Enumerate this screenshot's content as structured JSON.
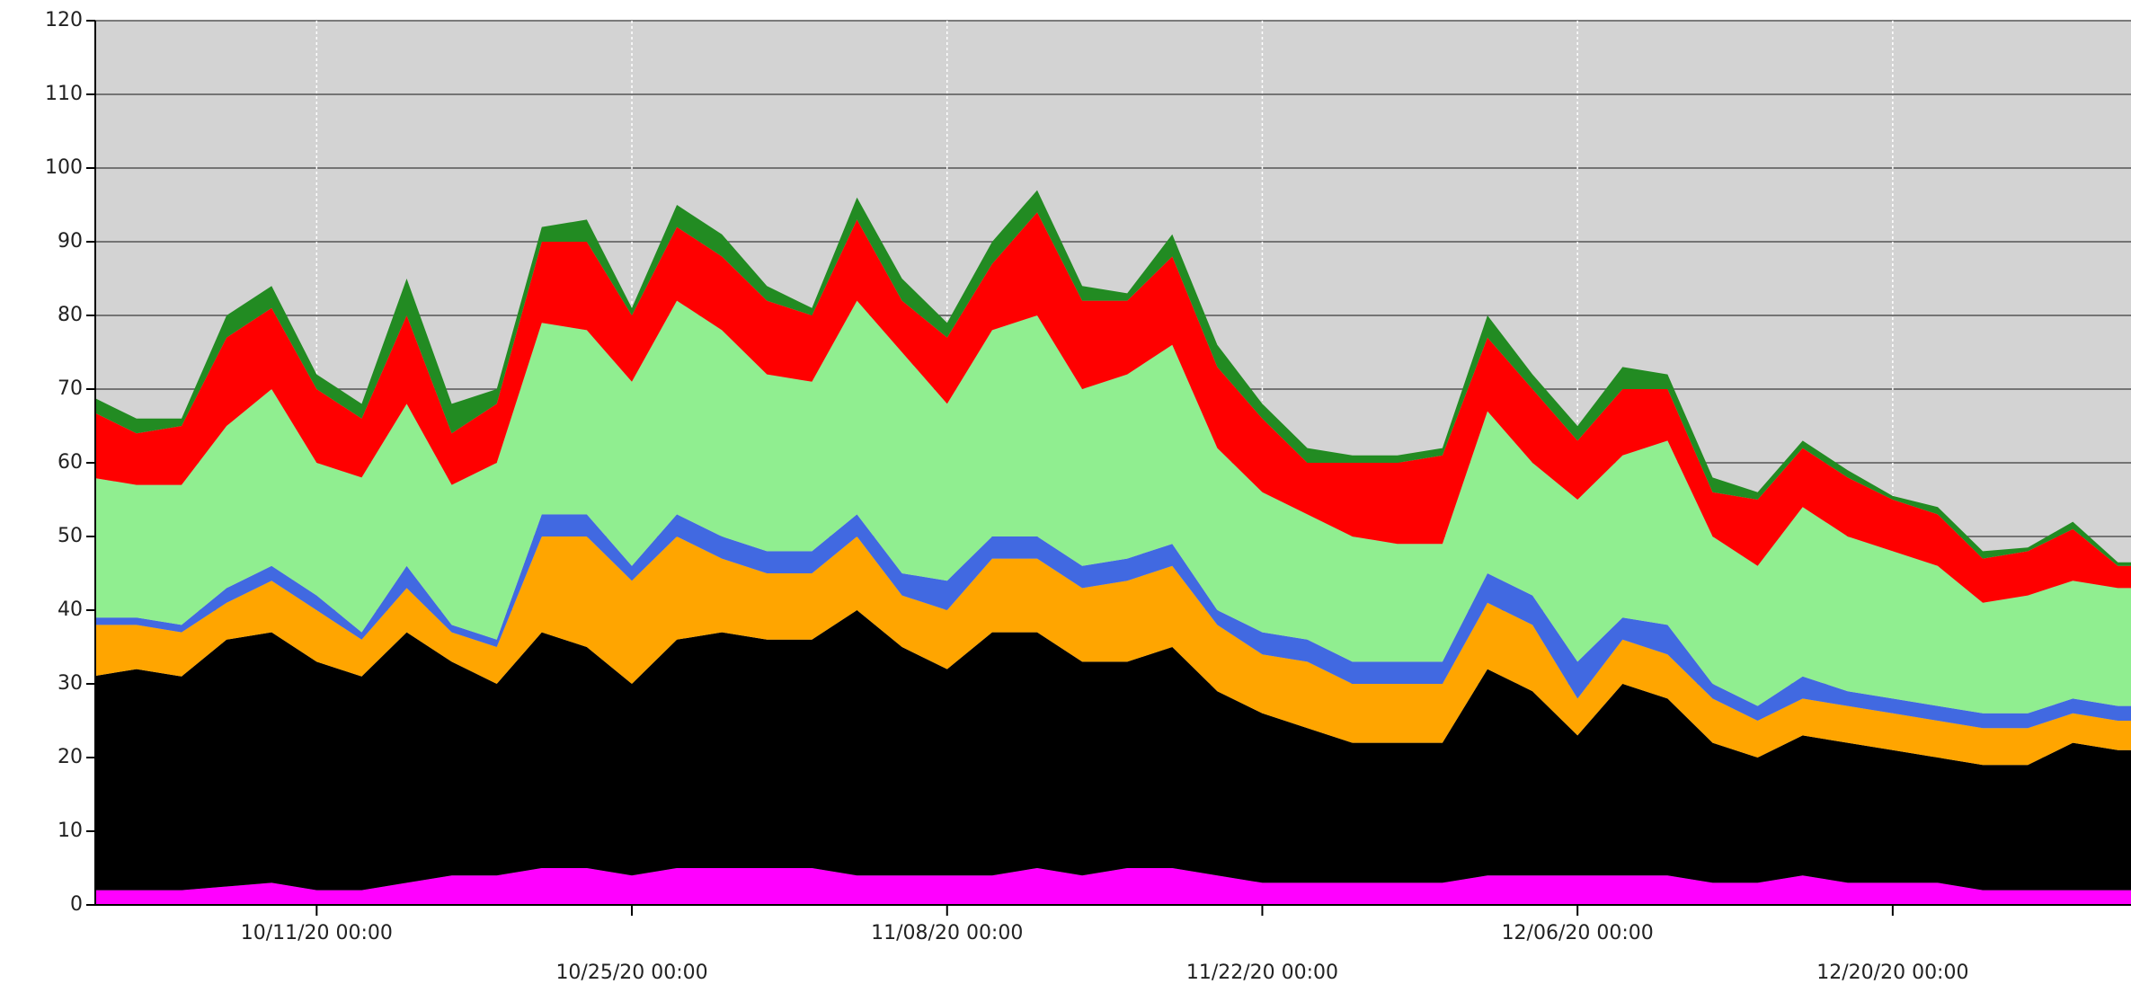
{
  "chart_data": {
    "type": "stacked_area",
    "x": [
      "10/01/20 00:00",
      "10/03/20 00:00",
      "10/05/20 00:00",
      "10/07/20 00:00",
      "10/09/20 00:00",
      "10/11/20 00:00",
      "10/13/20 00:00",
      "10/15/20 00:00",
      "10/17/20 00:00",
      "10/19/20 00:00",
      "10/21/20 00:00",
      "10/23/20 00:00",
      "10/25/20 00:00",
      "10/27/20 00:00",
      "10/29/20 00:00",
      "10/31/20 00:00",
      "11/02/20 00:00",
      "11/04/20 00:00",
      "11/06/20 00:00",
      "11/08/20 00:00",
      "11/10/20 00:00",
      "11/12/20 00:00",
      "11/14/20 00:00",
      "11/16/20 00:00",
      "11/18/20 00:00",
      "11/20/20 00:00",
      "11/22/20 00:00",
      "11/24/20 00:00",
      "11/26/20 00:00",
      "11/28/20 00:00",
      "11/30/20 00:00",
      "12/02/20 00:00",
      "12/04/20 00:00",
      "12/06/20 00:00",
      "12/08/20 00:00",
      "12/10/20 00:00",
      "12/12/20 00:00",
      "12/14/20 00:00",
      "12/16/20 00:00",
      "12/18/20 00:00",
      "12/20/20 00:00",
      "12/22/20 00:00",
      "12/24/20 00:00",
      "12/26/20 00:00",
      "12/28/20 00:00",
      "12/30/20 00:00",
      "12/30/20 14:00"
    ],
    "series": [
      {
        "color": "#ff00ff",
        "values": [
          2,
          2,
          2,
          2.5,
          3,
          2,
          2,
          3,
          4,
          4,
          5,
          5,
          4,
          5,
          5,
          5,
          5,
          4,
          4,
          4,
          4,
          5,
          4,
          5,
          5,
          4,
          3,
          3,
          3,
          3,
          3,
          4,
          4,
          4,
          4,
          4,
          3,
          3,
          4,
          3,
          3,
          3,
          2,
          2,
          2,
          2,
          2
        ]
      },
      {
        "color": "#000000",
        "values": [
          29,
          30,
          29,
          33.5,
          34,
          31,
          29,
          34,
          29,
          26,
          32,
          30,
          26,
          31,
          32,
          31,
          31,
          36,
          31,
          28,
          33,
          32,
          29,
          28,
          30,
          25,
          23,
          21,
          19,
          19,
          19,
          28,
          25,
          19,
          26,
          24,
          19,
          17,
          19,
          19,
          18,
          17,
          17,
          17,
          20,
          19,
          19
        ]
      },
      {
        "color": "#ffa500",
        "values": [
          7,
          6,
          6,
          5,
          7,
          7,
          5,
          6,
          4,
          5,
          13,
          15,
          14,
          14,
          10,
          9,
          9,
          10,
          7,
          8,
          10,
          10,
          10,
          11,
          11,
          9,
          8,
          9,
          8,
          8,
          8,
          9,
          9,
          5,
          6,
          6,
          6,
          5,
          5,
          5,
          5,
          5,
          5,
          5,
          4,
          4,
          4
        ]
      },
      {
        "color": "#4169e1",
        "values": [
          1,
          1,
          1,
          2,
          2,
          2,
          1,
          3,
          1,
          1,
          3,
          3,
          2,
          3,
          3,
          3,
          3,
          3,
          3,
          4,
          3,
          3,
          3,
          3,
          3,
          2,
          3,
          3,
          3,
          3,
          3,
          4,
          4,
          5,
          3,
          4,
          2,
          2,
          3,
          2,
          2,
          2,
          2,
          2,
          2,
          2,
          2
        ]
      },
      {
        "color": "#90ee90",
        "values": [
          19,
          18,
          19,
          22,
          24,
          18,
          21,
          22,
          19,
          24,
          26,
          25,
          25,
          29,
          28,
          24,
          23,
          29,
          30,
          24,
          28,
          30,
          24,
          25,
          27,
          22,
          19,
          17,
          17,
          16,
          16,
          22,
          18,
          22,
          22,
          25,
          20,
          19,
          23,
          21,
          20,
          19,
          15,
          16,
          16,
          16,
          16
        ]
      },
      {
        "color": "#ff0000",
        "values": [
          9,
          7,
          8,
          12,
          11,
          10,
          8,
          12,
          7,
          8,
          11,
          12,
          9,
          10,
          10,
          10,
          9,
          11,
          7,
          9,
          9,
          14,
          12,
          10,
          12,
          11,
          10,
          7,
          10,
          11,
          12,
          10,
          10,
          8,
          9,
          7,
          6,
          9,
          8,
          8,
          7,
          7,
          6,
          6,
          7,
          3,
          3
        ]
      },
      {
        "color": "#228b22",
        "values": [
          2,
          2,
          1,
          3,
          3,
          2,
          2,
          5,
          4,
          2,
          2,
          3,
          1,
          3,
          3,
          2,
          1,
          3,
          3,
          2,
          3,
          3,
          2,
          1,
          3,
          3,
          2,
          2,
          1,
          1,
          1,
          3,
          2,
          2,
          3,
          2,
          2,
          1,
          1,
          1,
          0.5,
          1,
          1,
          0.5,
          1,
          0.5,
          0.5
        ]
      }
    ],
    "xlim": [
      "10/01/20 04:00",
      "12/30/20 14:00"
    ],
    "xticks": [
      "10/11/20 00:00",
      "10/25/20 00:00",
      "11/08/20 00:00",
      "11/22/20 00:00",
      "12/06/20 00:00",
      "12/20/20 00:00"
    ],
    "ylim": [
      0,
      120
    ],
    "yticks": [
      0,
      10,
      20,
      30,
      40,
      50,
      60,
      70,
      80,
      90,
      100,
      110,
      120
    ],
    "grid": true,
    "plot_background": "#d3d3d3"
  }
}
